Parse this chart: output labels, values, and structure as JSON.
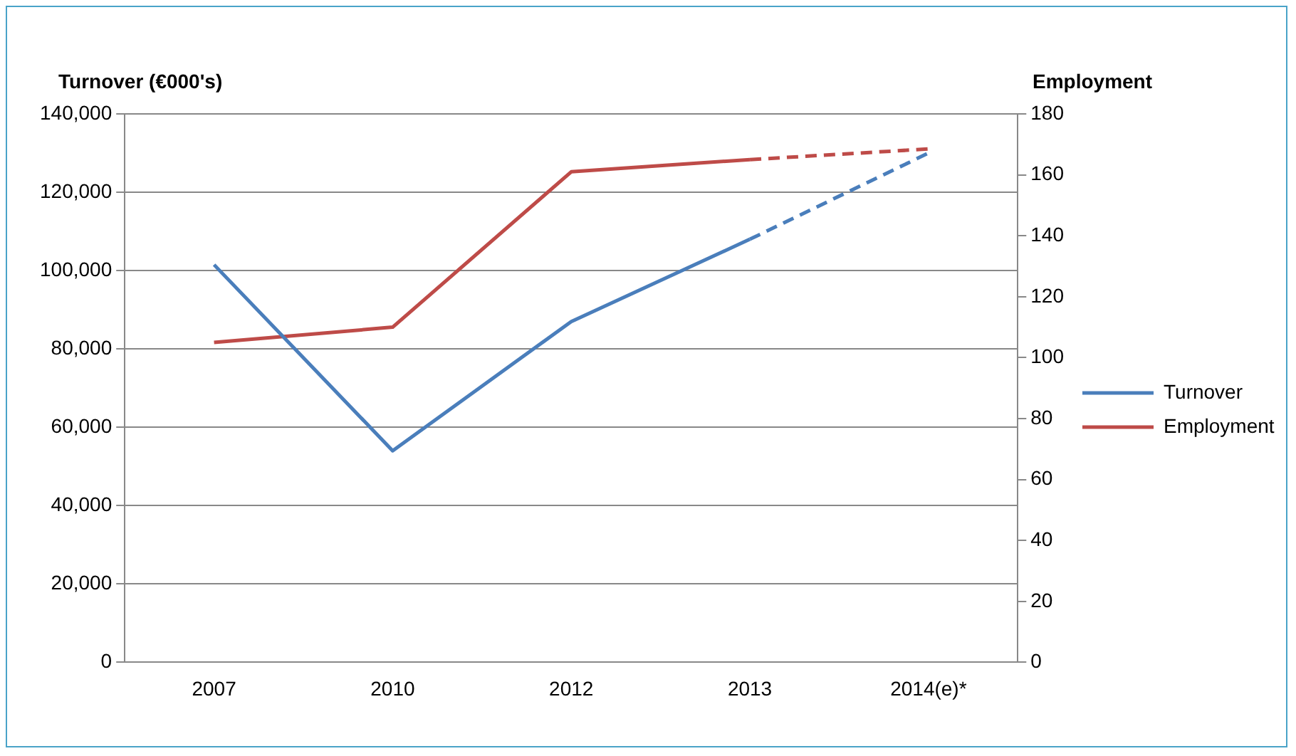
{
  "chart_data": {
    "type": "line",
    "categories": [
      "2007",
      "2010",
      "2012",
      "2013",
      "2014(e)*"
    ],
    "ylabel": "Turnover (€000's)",
    "y2label": "Employment",
    "ylim": [
      0,
      140000
    ],
    "yticks": [
      {
        "value": 0,
        "label": "0"
      },
      {
        "value": 20000,
        "label": "20,000"
      },
      {
        "value": 40000,
        "label": "40,000"
      },
      {
        "value": 60000,
        "label": "60,000"
      },
      {
        "value": 80000,
        "label": "80,000"
      },
      {
        "value": 100000,
        "label": "100,000"
      },
      {
        "value": 120000,
        "label": "120,000"
      },
      {
        "value": 140000,
        "label": "140,000"
      }
    ],
    "y2lim": [
      0,
      180
    ],
    "y2ticks": [
      0,
      20,
      40,
      60,
      80,
      100,
      120,
      140,
      160,
      180
    ],
    "grid": "y",
    "legend": "right",
    "marker": "none",
    "series": [
      {
        "name": "Turnover",
        "color": "#4a7ebb",
        "values": [
          101500,
          54000,
          87000,
          108000,
          null
        ],
        "line_style": "solid"
      },
      {
        "name": "Employment",
        "color": "#be4b48",
        "values": [
          105,
          110,
          161,
          165,
          null
        ],
        "axis": "y2",
        "line_style": "solid"
      },
      {
        "color": "#4a7ebb",
        "values": [
          null,
          null,
          null,
          108000,
          130000
        ],
        "line_style": "dashed"
      },
      {
        "color": "#be4b48",
        "values": [
          null,
          null,
          null,
          165,
          168.5
        ],
        "axis": "y2",
        "line_style": "dashed"
      }
    ]
  }
}
